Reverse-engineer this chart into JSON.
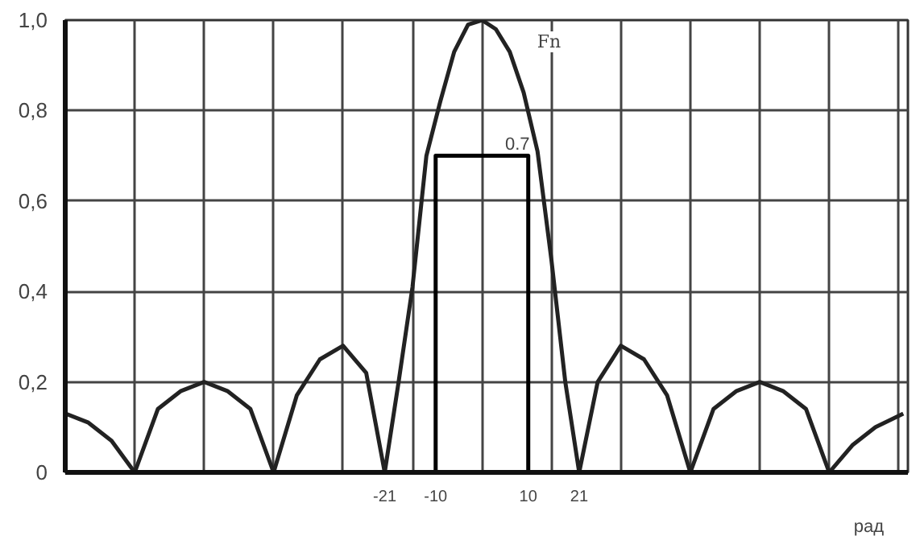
{
  "chart_data": {
    "type": "line",
    "xlabel": "рад",
    "xlim": [
      -90,
      92
    ],
    "ylim": [
      0,
      1
    ],
    "xticks": [
      {
        "value": -90,
        "label": null
      },
      {
        "value": -75,
        "label": null
      },
      {
        "value": -60,
        "label": null
      },
      {
        "value": -45,
        "label": null
      },
      {
        "value": -30,
        "label": null
      },
      {
        "value": -21,
        "label": "-21"
      },
      {
        "value": -15,
        "label": null
      },
      {
        "value": -10,
        "label": "-10"
      },
      {
        "value": 0,
        "label": null
      },
      {
        "value": 10,
        "label": "10"
      },
      {
        "value": 15,
        "label": null
      },
      {
        "value": 21,
        "label": "21"
      },
      {
        "value": 30,
        "label": null
      },
      {
        "value": 45,
        "label": null
      },
      {
        "value": 60,
        "label": null
      },
      {
        "value": 75,
        "label": null
      },
      {
        "value": 90,
        "label": null
      }
    ],
    "yticks": [
      {
        "value": 0,
        "label": "0"
      },
      {
        "value": 0.2,
        "label": "0,2"
      },
      {
        "value": 0.4,
        "label": "0,4"
      },
      {
        "value": 0.6,
        "label": "0,6"
      },
      {
        "value": 0.8,
        "label": "0,8"
      },
      {
        "value": 1.0,
        "label": "1,0"
      }
    ],
    "grid": true,
    "marker": "none",
    "line_style": "solid",
    "series": [
      {
        "color": "#222222",
        "x": [
          -90,
          -85,
          -80,
          -75,
          -70,
          -65,
          -60,
          -55,
          -50,
          -45,
          -40,
          -35,
          -30,
          -25,
          -21,
          -18,
          -15,
          -12,
          -9,
          -6,
          -3,
          0,
          3,
          6,
          9,
          12,
          15,
          18,
          21,
          25,
          30,
          35,
          40,
          45,
          50,
          55,
          60,
          65,
          70,
          75,
          80,
          85,
          91
        ],
        "values": [
          0.13,
          0.11,
          0.07,
          0,
          0.14,
          0.18,
          0.2,
          0.18,
          0.14,
          0,
          0.17,
          0.25,
          0.28,
          0.22,
          0,
          0.2,
          0.41,
          0.7,
          0.82,
          0.93,
          0.99,
          1.0,
          0.98,
          0.93,
          0.84,
          0.71,
          0.47,
          0.2,
          0,
          0.2,
          0.28,
          0.25,
          0.17,
          0,
          0.14,
          0.18,
          0.2,
          0.18,
          0.14,
          0,
          0.06,
          0.1,
          0.13
        ]
      },
      {
        "color": "#000000",
        "x": [
          -10,
          -10,
          10,
          10
        ],
        "values": [
          0,
          0.7,
          0.7,
          0
        ]
      }
    ],
    "annotations": [
      "Fn",
      {
        "text": "0.7",
        "x": 5,
        "y": 0.7
      }
    ]
  }
}
